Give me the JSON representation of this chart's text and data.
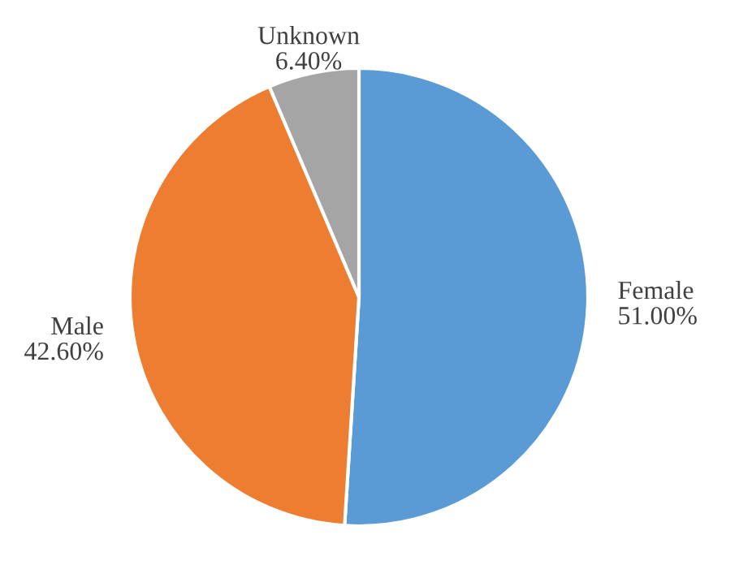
{
  "chart_data": {
    "type": "pie",
    "categories": [
      "Female",
      "Male",
      "Unknown"
    ],
    "values": [
      51.0,
      42.6,
      6.4
    ],
    "value_labels": [
      "51.00%",
      "42.60%",
      "6.40%"
    ],
    "colors": [
      "#5b9bd5",
      "#ed7d31",
      "#a5a5a5"
    ],
    "legend": false
  }
}
